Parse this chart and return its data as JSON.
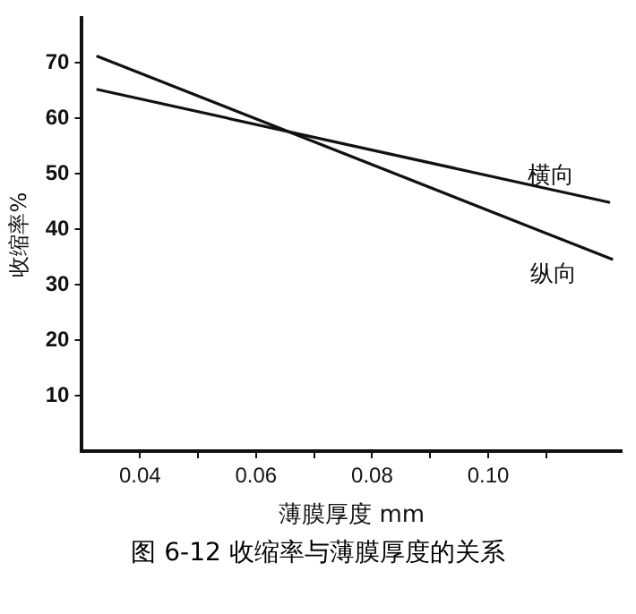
{
  "chart_data": {
    "type": "line",
    "xlabel": "薄膜厚度 mm",
    "ylabel": "收缩率%",
    "annotations": [
      "图 6-12   收缩率与薄膜厚度的关系"
    ],
    "xlim": [
      0.03,
      0.123
    ],
    "xticks": [
      {
        "value": 0.04,
        "label": "0.04"
      },
      {
        "value": 0.05,
        "label": null
      },
      {
        "value": 0.06,
        "label": "0.06"
      },
      {
        "value": 0.07,
        "label": null
      },
      {
        "value": 0.08,
        "label": "0.08"
      },
      {
        "value": 0.09,
        "label": null
      },
      {
        "value": 0.1,
        "label": "0.10"
      },
      {
        "value": 0.11,
        "label": null
      }
    ],
    "ylim": [
      0,
      78
    ],
    "yticks": [
      10,
      20,
      30,
      40,
      50,
      60,
      70
    ],
    "series": [
      {
        "name": "横向",
        "color": "#111111",
        "x": [
          0.0325,
          0.121
        ],
        "values": [
          65.2,
          44.8
        ]
      },
      {
        "name": "纵向",
        "color": "#111111",
        "x": [
          0.0325,
          0.1215
        ],
        "values": [
          71.2,
          34.5
        ]
      }
    ],
    "grid": false,
    "legend": false,
    "marker": "none",
    "line_style": "solid"
  }
}
